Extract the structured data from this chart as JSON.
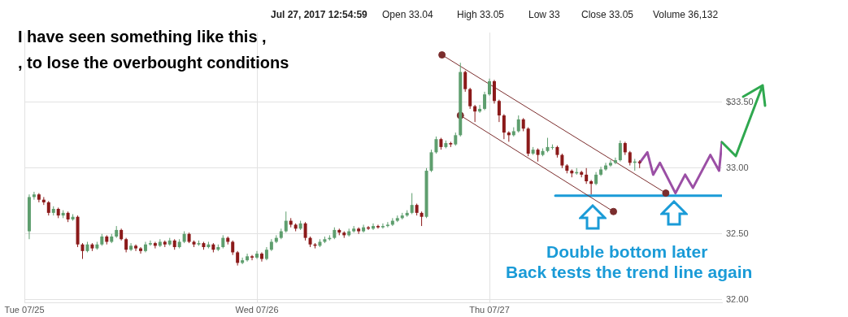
{
  "chart_data": {
    "type": "candlestick",
    "annotations": [
      "Jul 27, 2017 12:54:59",
      "Open 33.04",
      "High 33.05",
      "Low 33",
      "Close 33.05",
      "Volume 36,132",
      "I have seen something like this ,",
      ", to lose the overbought conditions",
      "Double bottom later",
      "Back tests the trend line again"
    ],
    "x": [
      "2017-07-25T00:30",
      "2017-07-25T01:00",
      "2017-07-25T01:30",
      "2017-07-25T02:00",
      "2017-07-25T02:30",
      "2017-07-25T03:00",
      "2017-07-25T03:30",
      "2017-07-25T04:00",
      "2017-07-25T04:30",
      "2017-07-25T05:00",
      "2017-07-25T05:30",
      "2017-07-25T06:00",
      "2017-07-25T06:30",
      "2017-07-25T07:00",
      "2017-07-25T07:30",
      "2017-07-25T08:00",
      "2017-07-25T08:30",
      "2017-07-25T09:00",
      "2017-07-25T09:30",
      "2017-07-25T10:00",
      "2017-07-25T10:30",
      "2017-07-25T11:00",
      "2017-07-25T11:30",
      "2017-07-25T12:00",
      "2017-07-25T12:30",
      "2017-07-25T13:00",
      "2017-07-25T13:30",
      "2017-07-25T14:00",
      "2017-07-25T14:30",
      "2017-07-25T15:00",
      "2017-07-25T15:30",
      "2017-07-25T16:00",
      "2017-07-25T16:30",
      "2017-07-25T17:00",
      "2017-07-25T17:30",
      "2017-07-25T18:00",
      "2017-07-25T18:30",
      "2017-07-25T19:00",
      "2017-07-25T19:30",
      "2017-07-25T20:00",
      "2017-07-25T20:30",
      "2017-07-25T21:00",
      "2017-07-25T21:30",
      "2017-07-25T22:00",
      "2017-07-25T22:30",
      "2017-07-25T23:00",
      "2017-07-25T23:30",
      "2017-07-26T00:00",
      "2017-07-26T00:30",
      "2017-07-26T01:00",
      "2017-07-26T01:30",
      "2017-07-26T02:00",
      "2017-07-26T02:30",
      "2017-07-26T03:00",
      "2017-07-26T03:30",
      "2017-07-26T04:00",
      "2017-07-26T04:30",
      "2017-07-26T05:00",
      "2017-07-26T05:30",
      "2017-07-26T06:00",
      "2017-07-26T06:30",
      "2017-07-26T07:00",
      "2017-07-26T07:30",
      "2017-07-26T08:00",
      "2017-07-26T08:30",
      "2017-07-26T09:00",
      "2017-07-26T09:30",
      "2017-07-26T10:00",
      "2017-07-26T10:30",
      "2017-07-26T11:00",
      "2017-07-26T11:30",
      "2017-07-26T12:00",
      "2017-07-26T12:30",
      "2017-07-26T13:00",
      "2017-07-26T13:30",
      "2017-07-26T14:00",
      "2017-07-26T14:30",
      "2017-07-26T15:00",
      "2017-07-26T15:30",
      "2017-07-26T16:00",
      "2017-07-26T16:30",
      "2017-07-26T17:00",
      "2017-07-26T17:30",
      "2017-07-26T18:00",
      "2017-07-26T18:30",
      "2017-07-26T19:00",
      "2017-07-26T19:30",
      "2017-07-26T20:00",
      "2017-07-26T20:30",
      "2017-07-26T21:00",
      "2017-07-26T21:30",
      "2017-07-26T22:00",
      "2017-07-26T22:30",
      "2017-07-26T23:00",
      "2017-07-26T23:30",
      "2017-07-27T00:00",
      "2017-07-27T00:30",
      "2017-07-27T01:00",
      "2017-07-27T01:30",
      "2017-07-27T02:00",
      "2017-07-27T02:30",
      "2017-07-27T03:00",
      "2017-07-27T03:30",
      "2017-07-27T04:00",
      "2017-07-27T04:30",
      "2017-07-27T05:00",
      "2017-07-27T05:30",
      "2017-07-27T06:00",
      "2017-07-27T06:30",
      "2017-07-27T07:00",
      "2017-07-27T07:30",
      "2017-07-27T08:00",
      "2017-07-27T08:30",
      "2017-07-27T09:00",
      "2017-07-27T09:30",
      "2017-07-27T10:00",
      "2017-07-27T10:30",
      "2017-07-27T11:00",
      "2017-07-27T11:30",
      "2017-07-27T12:00",
      "2017-07-27T12:30",
      "2017-07-27T13:00",
      "2017-07-27T13:30",
      "2017-07-27T14:00",
      "2017-07-27T14:30",
      "2017-07-27T15:00",
      "2017-07-27T15:30"
    ],
    "ohlc": [
      [
        32.52,
        32.8,
        32.46,
        32.78
      ],
      [
        32.78,
        32.82,
        32.76,
        32.8
      ],
      [
        32.8,
        32.81,
        32.74,
        32.76
      ],
      [
        32.76,
        32.78,
        32.72,
        32.74
      ],
      [
        32.74,
        32.75,
        32.64,
        32.66
      ],
      [
        32.66,
        32.71,
        32.64,
        32.69
      ],
      [
        32.69,
        32.7,
        32.62,
        32.64
      ],
      [
        32.64,
        32.68,
        32.62,
        32.66
      ],
      [
        32.66,
        32.67,
        32.59,
        32.61
      ],
      [
        32.61,
        32.65,
        32.6,
        32.63
      ],
      [
        32.63,
        32.64,
        32.4,
        32.42
      ],
      [
        32.42,
        32.43,
        32.31,
        32.37
      ],
      [
        32.37,
        32.44,
        32.36,
        32.42
      ],
      [
        32.42,
        32.43,
        32.37,
        32.39
      ],
      [
        32.39,
        32.44,
        32.38,
        32.42
      ],
      [
        32.42,
        32.5,
        32.41,
        32.48
      ],
      [
        32.48,
        32.49,
        32.42,
        32.44
      ],
      [
        32.44,
        32.5,
        32.43,
        32.48
      ],
      [
        32.48,
        32.56,
        32.47,
        32.53
      ],
      [
        32.53,
        32.54,
        32.45,
        32.46
      ],
      [
        32.46,
        32.47,
        32.36,
        32.38
      ],
      [
        32.38,
        32.43,
        32.37,
        32.41
      ],
      [
        32.41,
        32.42,
        32.37,
        32.39
      ],
      [
        32.39,
        32.4,
        32.35,
        32.37
      ],
      [
        32.37,
        32.44,
        32.36,
        32.42
      ],
      [
        32.42,
        32.45,
        32.41,
        32.43
      ],
      [
        32.43,
        32.44,
        32.39,
        32.41
      ],
      [
        32.41,
        32.46,
        32.4,
        32.44
      ],
      [
        32.44,
        32.45,
        32.4,
        32.42
      ],
      [
        32.42,
        32.47,
        32.41,
        32.45
      ],
      [
        32.45,
        32.46,
        32.38,
        32.4
      ],
      [
        32.4,
        32.46,
        32.39,
        32.44
      ],
      [
        32.44,
        32.52,
        32.43,
        32.5
      ],
      [
        32.5,
        32.51,
        32.43,
        32.44
      ],
      [
        32.44,
        32.45,
        32.4,
        32.42
      ],
      [
        32.42,
        32.45,
        32.41,
        32.43
      ],
      [
        32.43,
        32.44,
        32.38,
        32.4
      ],
      [
        32.4,
        32.44,
        32.39,
        32.42
      ],
      [
        32.42,
        32.43,
        32.36,
        32.38
      ],
      [
        32.38,
        32.42,
        32.37,
        32.4
      ],
      [
        32.4,
        32.49,
        32.39,
        32.47
      ],
      [
        32.47,
        32.48,
        32.42,
        32.44
      ],
      [
        32.44,
        32.45,
        32.34,
        32.36
      ],
      [
        32.36,
        32.37,
        32.26,
        32.28
      ],
      [
        32.28,
        32.32,
        32.27,
        32.3
      ],
      [
        32.3,
        32.35,
        32.29,
        32.33
      ],
      [
        32.33,
        32.34,
        32.3,
        32.32
      ],
      [
        32.32,
        32.37,
        32.31,
        32.35
      ],
      [
        32.35,
        32.36,
        32.29,
        32.31
      ],
      [
        32.31,
        32.4,
        32.3,
        32.38
      ],
      [
        32.38,
        32.46,
        32.37,
        32.44
      ],
      [
        32.44,
        32.49,
        32.43,
        32.47
      ],
      [
        32.47,
        32.54,
        32.46,
        32.52
      ],
      [
        32.52,
        32.67,
        32.51,
        32.6
      ],
      [
        32.6,
        32.62,
        32.55,
        32.57
      ],
      [
        32.57,
        32.58,
        32.52,
        32.54
      ],
      [
        32.54,
        32.6,
        32.53,
        32.58
      ],
      [
        32.58,
        32.59,
        32.45,
        32.47
      ],
      [
        32.47,
        32.48,
        32.4,
        32.42
      ],
      [
        32.42,
        32.43,
        32.39,
        32.41
      ],
      [
        32.41,
        32.46,
        32.4,
        32.44
      ],
      [
        32.44,
        32.48,
        32.43,
        32.46
      ],
      [
        32.46,
        32.49,
        32.45,
        32.47
      ],
      [
        32.47,
        32.55,
        32.46,
        32.53
      ],
      [
        32.53,
        32.54,
        32.49,
        32.51
      ],
      [
        32.51,
        32.52,
        32.47,
        32.49
      ],
      [
        32.49,
        32.54,
        32.48,
        32.52
      ],
      [
        32.52,
        32.56,
        32.51,
        32.54
      ],
      [
        32.54,
        32.55,
        32.5,
        32.52
      ],
      [
        32.52,
        32.57,
        32.51,
        32.55
      ],
      [
        32.55,
        32.56,
        32.53,
        32.54
      ],
      [
        32.54,
        32.58,
        32.53,
        32.56
      ],
      [
        32.56,
        32.57,
        32.54,
        32.55
      ],
      [
        32.55,
        32.58,
        32.54,
        32.56
      ],
      [
        32.56,
        32.59,
        32.55,
        32.57
      ],
      [
        32.57,
        32.62,
        32.56,
        32.6
      ],
      [
        32.6,
        32.64,
        32.59,
        32.62
      ],
      [
        32.62,
        32.66,
        32.61,
        32.64
      ],
      [
        32.64,
        32.68,
        32.63,
        32.66
      ],
      [
        32.66,
        32.81,
        32.65,
        32.72
      ],
      [
        32.72,
        32.73,
        32.64,
        32.66
      ],
      [
        32.66,
        32.67,
        32.56,
        32.63
      ],
      [
        32.63,
        33.0,
        32.62,
        32.98
      ],
      [
        32.98,
        33.14,
        32.97,
        33.12
      ],
      [
        33.12,
        33.24,
        33.11,
        33.22
      ],
      [
        33.22,
        33.23,
        33.14,
        33.16
      ],
      [
        33.16,
        33.21,
        33.15,
        33.19
      ],
      [
        33.19,
        33.2,
        33.16,
        33.18
      ],
      [
        33.18,
        33.27,
        33.17,
        33.25
      ],
      [
        33.25,
        33.8,
        33.24,
        33.73
      ],
      [
        33.73,
        33.74,
        33.58,
        33.6
      ],
      [
        33.6,
        33.61,
        33.45,
        33.47
      ],
      [
        33.47,
        33.48,
        33.35,
        33.43
      ],
      [
        33.43,
        33.48,
        33.42,
        33.45
      ],
      [
        33.45,
        33.58,
        33.44,
        33.56
      ],
      [
        33.56,
        33.68,
        33.55,
        33.66
      ],
      [
        33.66,
        33.67,
        33.49,
        33.51
      ],
      [
        33.51,
        33.52,
        33.35,
        33.4
      ],
      [
        33.4,
        33.41,
        33.22,
        33.27
      ],
      [
        33.27,
        33.28,
        33.2,
        33.25
      ],
      [
        33.25,
        33.31,
        33.24,
        33.28
      ],
      [
        33.28,
        33.4,
        33.27,
        33.37
      ],
      [
        33.37,
        33.38,
        33.28,
        33.3
      ],
      [
        33.3,
        33.31,
        33.09,
        33.11
      ],
      [
        33.11,
        33.16,
        33.1,
        33.14
      ],
      [
        33.14,
        33.15,
        33.05,
        33.1
      ],
      [
        33.1,
        33.15,
        33.09,
        33.13
      ],
      [
        33.13,
        33.23,
        33.12,
        33.16
      ],
      [
        33.16,
        33.18,
        33.14,
        33.16
      ],
      [
        33.16,
        33.17,
        33.08,
        33.1
      ],
      [
        33.1,
        33.11,
        33.0,
        33.02
      ],
      [
        33.02,
        33.03,
        32.96,
        32.98
      ],
      [
        32.98,
        32.99,
        32.93,
        32.96
      ],
      [
        32.96,
        33.0,
        32.95,
        32.97
      ],
      [
        32.97,
        32.98,
        32.93,
        32.95
      ],
      [
        32.95,
        33.0,
        32.88,
        32.9
      ],
      [
        32.9,
        32.91,
        32.8,
        32.88
      ],
      [
        32.88,
        32.97,
        32.87,
        32.95
      ],
      [
        32.95,
        33.01,
        32.94,
        32.99
      ],
      [
        32.99,
        33.04,
        32.98,
        33.02
      ],
      [
        33.02,
        33.06,
        33.01,
        33.04
      ],
      [
        33.04,
        33.08,
        33.03,
        33.06
      ],
      [
        33.06,
        33.21,
        33.05,
        33.19
      ],
      [
        33.19,
        33.2,
        33.1,
        33.12
      ],
      [
        33.12,
        33.13,
        33.02,
        33.04
      ],
      [
        33.04,
        33.07,
        32.98,
        33.05
      ],
      [
        33.05,
        33.06,
        33.0,
        33.04
      ]
    ],
    "colors": [
      "#5e9e6e",
      "#5e9e6e",
      "#8b1a1a",
      "#8b1a1a",
      "#8b1a1a",
      "#5e9e6e",
      "#8b1a1a",
      "#5e9e6e",
      "#8b1a1a",
      "#5e9e6e",
      "#8b1a1a",
      "#8b1a1a",
      "#5e9e6e",
      "#8b1a1a",
      "#5e9e6e",
      "#5e9e6e",
      "#8b1a1a",
      "#5e9e6e",
      "#5e9e6e",
      "#8b1a1a",
      "#8b1a1a",
      "#5e9e6e",
      "#8b1a1a",
      "#8b1a1a",
      "#5e9e6e",
      "#5e9e6e",
      "#8b1a1a",
      "#5e9e6e",
      "#8b1a1a",
      "#5e9e6e",
      "#8b1a1a",
      "#5e9e6e",
      "#5e9e6e",
      "#8b1a1a",
      "#8b1a1a",
      "#5e9e6e",
      "#8b1a1a",
      "#5e9e6e",
      "#8b1a1a",
      "#5e9e6e",
      "#5e9e6e",
      "#8b1a1a",
      "#8b1a1a",
      "#8b1a1a",
      "#5e9e6e",
      "#5e9e6e",
      "#8b1a1a",
      "#5e9e6e",
      "#8b1a1a",
      "#5e9e6e",
      "#5e9e6e",
      "#5e9e6e",
      "#5e9e6e",
      "#5e9e6e",
      "#8b1a1a",
      "#8b1a1a",
      "#5e9e6e",
      "#8b1a1a",
      "#8b1a1a",
      "#8b1a1a",
      "#5e9e6e",
      "#5e9e6e",
      "#5e9e6e",
      "#5e9e6e",
      "#8b1a1a",
      "#8b1a1a",
      "#5e9e6e",
      "#5e9e6e",
      "#8b1a1a",
      "#5e9e6e",
      "#8b1a1a",
      "#5e9e6e",
      "#8b1a1a",
      "#5e9e6e",
      "#5e9e6e",
      "#5e9e6e",
      "#5e9e6e",
      "#5e9e6e",
      "#5e9e6e",
      "#5e9e6e",
      "#8b1a1a",
      "#8b1a1a",
      "#5e9e6e",
      "#5e9e6e",
      "#5e9e6e",
      "#8b1a1a",
      "#5e9e6e",
      "#8b1a1a",
      "#5e9e6e",
      "#5e9e6e",
      "#8b1a1a",
      "#8b1a1a",
      "#8b1a1a",
      "#5e9e6e",
      "#5e9e6e",
      "#5e9e6e",
      "#8b1a1a",
      "#8b1a1a",
      "#8b1a1a",
      "#8b1a1a",
      "#5e9e6e",
      "#5e9e6e",
      "#8b1a1a",
      "#8b1a1a",
      "#5e9e6e",
      "#8b1a1a",
      "#5e9e6e",
      "#5e9e6e",
      "#5e9e6e",
      "#8b1a1a",
      "#8b1a1a",
      "#8b1a1a",
      "#8b1a1a",
      "#5e9e6e",
      "#8b1a1a",
      "#8b1a1a",
      "#8b1a1a",
      "#5e9e6e",
      "#5e9e6e",
      "#5e9e6e",
      "#5e9e6e",
      "#5e9e6e",
      "#5e9e6e",
      "#8b1a1a",
      "#8b1a1a",
      "#5e9e6e",
      "#8b1a1a"
    ],
    "series": [
      {
        "type": "line",
        "color": "#7b2d2d",
        "marker": "circle",
        "x": [
          "2017-07-26T19:06",
          "2017-07-27T18:12"
        ],
        "values": [
          33.86,
          32.81
        ]
      },
      {
        "type": "line",
        "color": "#7b2d2d",
        "marker": "circle",
        "x": [
          "2017-07-26T21:00",
          "2017-07-27T12:48"
        ],
        "values": [
          33.4,
          32.67
        ]
      },
      {
        "type": "line",
        "color": "#1a9bd7",
        "x": [
          "2017-07-27T06:48",
          "2017-07-28T00:00"
        ],
        "values": [
          32.79,
          32.79
        ]
      },
      {
        "type": "line",
        "color": "#9b4fa5",
        "x": [
          "2017-07-27T15:30",
          "2017-07-27T16:18",
          "2017-07-27T16:54",
          "2017-07-27T17:36",
          "2017-07-27T19:12",
          "2017-07-27T20:12",
          "2017-07-27T21:00",
          "2017-07-27T22:48",
          "2017-07-27T23:42",
          "2017-07-28T00:00"
        ],
        "values": [
          33.04,
          33.12,
          32.95,
          33.04,
          32.81,
          32.95,
          32.85,
          33.1,
          32.98,
          33.2
        ]
      }
    ],
    "xlim": [
      "2017-07-25T00:00",
      "2017-07-28T00:00"
    ],
    "xticks": [
      {
        "value": "2017-07-25",
        "label": "Tue 07/25"
      },
      {
        "value": "2017-07-26",
        "label": "Wed 07/26"
      },
      {
        "value": "2017-07-27",
        "label": "Thu 07/27"
      }
    ],
    "ylim": [
      31.98,
      34.03
    ],
    "yticks": [
      {
        "value": 32,
        "label": "32.00"
      },
      {
        "value": 32.5,
        "label": "32.50"
      },
      {
        "value": 33,
        "label": "33.00"
      },
      {
        "value": 33.5,
        "label": "$33.50"
      }
    ],
    "grid": true,
    "legend": false
  }
}
